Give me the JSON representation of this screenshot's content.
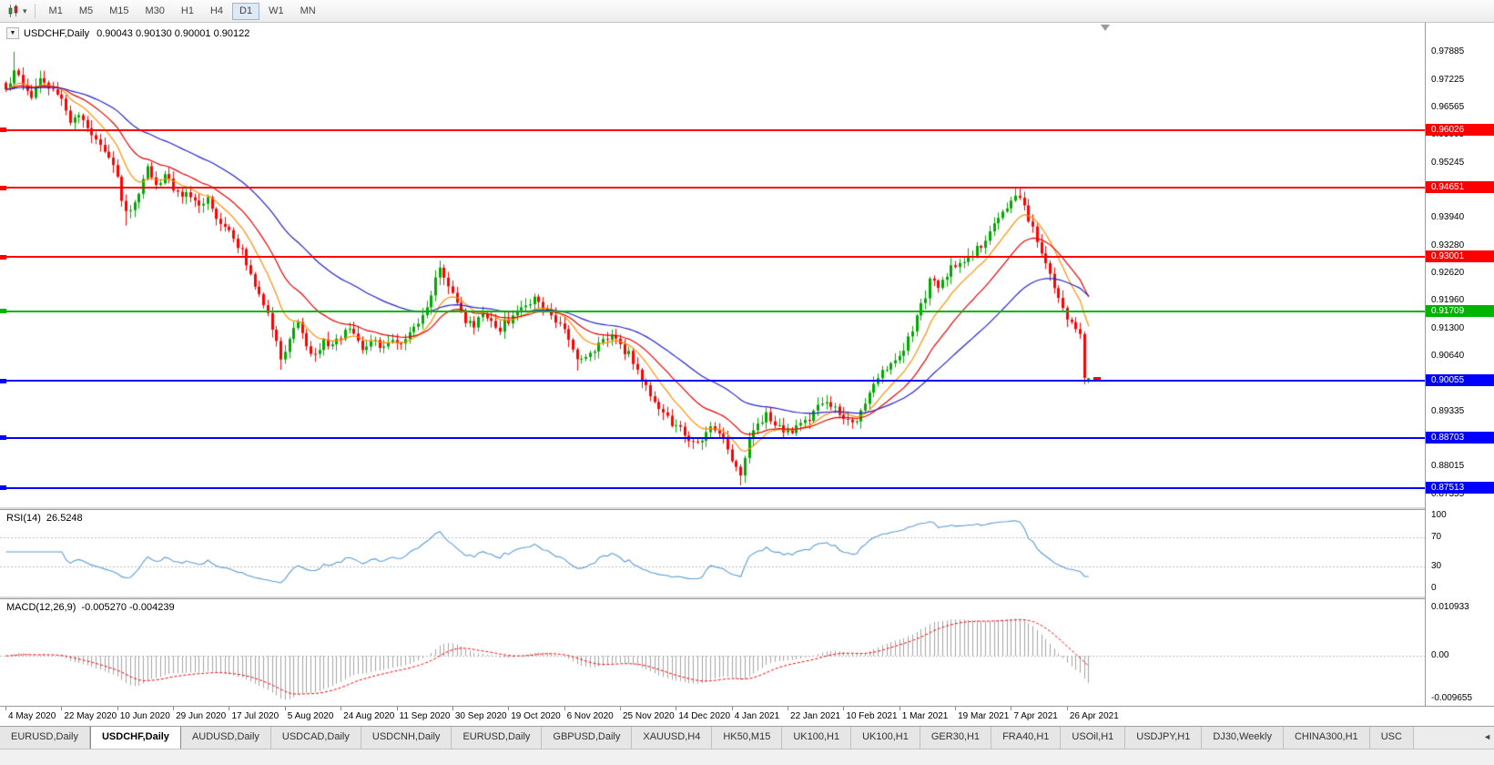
{
  "toolbar": {
    "timeframes": [
      "M1",
      "M5",
      "M15",
      "M30",
      "H1",
      "H4",
      "D1",
      "W1",
      "MN"
    ],
    "active_timeframe": "D1",
    "dropdown_caret": "▾"
  },
  "price_pane": {
    "collapse_arrow": "▼",
    "title": "USDCHF,Daily",
    "ohlc_text": "0.90043 0.90130 0.90001 0.90122"
  },
  "rsi_pane": {
    "label": "RSI(14)",
    "value": "26.5248"
  },
  "macd_pane": {
    "label": "MACD(12,26,9)",
    "values": "-0.005270 -0.004239"
  },
  "tab_bar": {
    "active_index": 1,
    "tabs": [
      "EURUSD,Daily",
      "USDCHF,Daily",
      "AUDUSD,Daily",
      "USDCAD,Daily",
      "USDCNH,Daily",
      "EURUSD,Daily",
      "GBPUSD,Daily",
      "XAUUSD,H4",
      "HK50,M15",
      "UK100,H1",
      "UK100,H1",
      "GER30,H1",
      "FRA40,H1",
      "USOil,H1",
      "USDJPY,H1",
      "DJ30,Weekly",
      "CHINA300,H1",
      "USC"
    ],
    "scroll_left_arrow": "◄"
  },
  "chart_data": {
    "type": "candlestick",
    "symbol": "USDCHF",
    "period": "Daily",
    "last_candle": {
      "o": 0.90043,
      "h": 0.9013,
      "l": 0.90001,
      "c": 0.90122
    },
    "ylim": [
      0.8707,
      0.9858
    ],
    "y_ticks": [
      0.97885,
      0.97225,
      0.96565,
      0.95905,
      0.95245,
      0.94585,
      0.9394,
      0.9328,
      0.9262,
      0.9196,
      0.913,
      0.9064,
      0.8998,
      0.89335,
      0.88675,
      0.88015,
      0.87355
    ],
    "x_ticks": [
      [
        0,
        "4 May 2020"
      ],
      [
        13,
        "22 May 2020"
      ],
      [
        26,
        "10 Jun 2020"
      ],
      [
        39,
        "29 Jun 2020"
      ],
      [
        52,
        "17 Jul 2020"
      ],
      [
        65,
        "5 Aug 2020"
      ],
      [
        78,
        "24 Aug 2020"
      ],
      [
        91,
        "11 Sep 2020"
      ],
      [
        104,
        "30 Sep 2020"
      ],
      [
        117,
        "19 Oct 2020"
      ],
      [
        130,
        "6 Nov 2020"
      ],
      [
        143,
        "25 Nov 2020"
      ],
      [
        156,
        "14 Dec 2020"
      ],
      [
        169,
        "4 Jan 2021"
      ],
      [
        182,
        "22 Jan 2021"
      ],
      [
        195,
        "10 Feb 2021"
      ],
      [
        208,
        "1 Mar 2021"
      ],
      [
        221,
        "19 Mar 2021"
      ],
      [
        234,
        "7 Apr 2021"
      ],
      [
        247,
        "26 Apr 2021"
      ]
    ],
    "hlines": [
      {
        "value": 0.96026,
        "label": "0.96026",
        "color": "#ff0000"
      },
      {
        "value": 0.94651,
        "label": "0.94651",
        "color": "#ff0000"
      },
      {
        "value": 0.93001,
        "label": "0.93001",
        "color": "#ff0000"
      },
      {
        "value": 0.91709,
        "label": "0.91709",
        "color": "#00b400"
      },
      {
        "value": 0.90055,
        "label": "0.90055",
        "color": "#0000ff"
      },
      {
        "value": 0.88703,
        "label": "0.88703",
        "color": "#0000ff"
      },
      {
        "value": 0.87513,
        "label": "0.87513",
        "color": "#0000ff"
      }
    ],
    "candle_count": 253,
    "price_keypoints": [
      [
        0,
        0.969
      ],
      [
        2,
        0.9745
      ],
      [
        4,
        0.971
      ],
      [
        6,
        0.9688
      ],
      [
        8,
        0.9716
      ],
      [
        10,
        0.9702
      ],
      [
        13,
        0.9668
      ],
      [
        15,
        0.9625
      ],
      [
        17,
        0.9642
      ],
      [
        19,
        0.96
      ],
      [
        21,
        0.9575
      ],
      [
        23,
        0.9548
      ],
      [
        25,
        0.9528
      ],
      [
        26,
        0.9495
      ],
      [
        27,
        0.944
      ],
      [
        28,
        0.9405
      ],
      [
        30,
        0.9435
      ],
      [
        33,
        0.9508
      ],
      [
        35,
        0.9478
      ],
      [
        37,
        0.9494
      ],
      [
        39,
        0.9468
      ],
      [
        41,
        0.944
      ],
      [
        43,
        0.9452
      ],
      [
        45,
        0.9415
      ],
      [
        47,
        0.9436
      ],
      [
        49,
        0.9396
      ],
      [
        51,
        0.9372
      ],
      [
        53,
        0.9348
      ],
      [
        55,
        0.9312
      ],
      [
        57,
        0.9252
      ],
      [
        59,
        0.9222
      ],
      [
        61,
        0.9162
      ],
      [
        63,
        0.9096
      ],
      [
        64,
        0.9058
      ],
      [
        66,
        0.9108
      ],
      [
        68,
        0.9136
      ],
      [
        70,
        0.9092
      ],
      [
        72,
        0.9068
      ],
      [
        74,
        0.9104
      ],
      [
        76,
        0.9086
      ],
      [
        78,
        0.911
      ],
      [
        80,
        0.9134
      ],
      [
        82,
        0.9092
      ],
      [
        84,
        0.908
      ],
      [
        86,
        0.9102
      ],
      [
        88,
        0.9086
      ],
      [
        90,
        0.91
      ],
      [
        92,
        0.9086
      ],
      [
        94,
        0.9112
      ],
      [
        96,
        0.9142
      ],
      [
        98,
        0.9186
      ],
      [
        100,
        0.9242
      ],
      [
        101,
        0.9276
      ],
      [
        103,
        0.924
      ],
      [
        105,
        0.9196
      ],
      [
        107,
        0.9148
      ],
      [
        109,
        0.9136
      ],
      [
        111,
        0.916
      ],
      [
        113,
        0.9146
      ],
      [
        115,
        0.9132
      ],
      [
        117,
        0.9152
      ],
      [
        119,
        0.9164
      ],
      [
        121,
        0.9188
      ],
      [
        123,
        0.9204
      ],
      [
        125,
        0.9188
      ],
      [
        127,
        0.916
      ],
      [
        129,
        0.9146
      ],
      [
        131,
        0.9108
      ],
      [
        133,
        0.9048
      ],
      [
        135,
        0.9056
      ],
      [
        137,
        0.9078
      ],
      [
        139,
        0.9098
      ],
      [
        141,
        0.9112
      ],
      [
        143,
        0.9086
      ],
      [
        145,
        0.9068
      ],
      [
        147,
        0.9026
      ],
      [
        149,
        0.8996
      ],
      [
        151,
        0.8962
      ],
      [
        153,
        0.893
      ],
      [
        155,
        0.8908
      ],
      [
        157,
        0.8888
      ],
      [
        159,
        0.8862
      ],
      [
        161,
        0.8856
      ],
      [
        163,
        0.8882
      ],
      [
        165,
        0.8894
      ],
      [
        167,
        0.8868
      ],
      [
        169,
        0.8822
      ],
      [
        171,
        0.8772
      ],
      [
        173,
        0.8862
      ],
      [
        175,
        0.8902
      ],
      [
        177,
        0.8926
      ],
      [
        179,
        0.8906
      ],
      [
        181,
        0.8892
      ],
      [
        183,
        0.8886
      ],
      [
        185,
        0.8896
      ],
      [
        187,
        0.8912
      ],
      [
        189,
        0.8946
      ],
      [
        191,
        0.8962
      ],
      [
        193,
        0.894
      ],
      [
        195,
        0.8924
      ],
      [
        197,
        0.8906
      ],
      [
        199,
        0.8932
      ],
      [
        201,
        0.8976
      ],
      [
        203,
        0.9012
      ],
      [
        205,
        0.9042
      ],
      [
        207,
        0.9062
      ],
      [
        209,
        0.9086
      ],
      [
        211,
        0.9132
      ],
      [
        213,
        0.9182
      ],
      [
        215,
        0.9242
      ],
      [
        217,
        0.9228
      ],
      [
        219,
        0.9262
      ],
      [
        221,
        0.9282
      ],
      [
        223,
        0.9296
      ],
      [
        225,
        0.9312
      ],
      [
        227,
        0.9332
      ],
      [
        229,
        0.9362
      ],
      [
        231,
        0.9388
      ],
      [
        233,
        0.9422
      ],
      [
        235,
        0.9452
      ],
      [
        237,
        0.942
      ],
      [
        239,
        0.9366
      ],
      [
        241,
        0.9308
      ],
      [
        243,
        0.9258
      ],
      [
        245,
        0.9196
      ],
      [
        247,
        0.9148
      ],
      [
        249,
        0.9132
      ],
      [
        250,
        0.9122
      ],
      [
        251,
        0.9018
      ],
      [
        252,
        0.90122
      ]
    ],
    "spikes": [
      {
        "i": 2,
        "high": 0.9789
      },
      {
        "i": 28,
        "low": 0.9375
      },
      {
        "i": 64,
        "low": 0.9032
      },
      {
        "i": 101,
        "high": 0.9292
      },
      {
        "i": 133,
        "low": 0.903
      },
      {
        "i": 171,
        "low": 0.8757
      },
      {
        "i": 235,
        "high": 0.9466
      },
      {
        "i": 251,
        "low": 0.9002
      }
    ],
    "moving_averages": [
      {
        "period": 10,
        "color": "#ff8c00"
      },
      {
        "period": 21,
        "color": "#e60000"
      },
      {
        "period": 45,
        "color": "#2222cc"
      }
    ],
    "indicators": {
      "rsi": {
        "label": "RSI(14)",
        "period": 14,
        "current": 26.5248,
        "levels": [
          70,
          30
        ],
        "axis_labels": [
          "100",
          "70",
          "30",
          "0"
        ],
        "color": "#5b9bd5"
      },
      "macd": {
        "label": "MACD(12,26,9)",
        "current_main": -0.00527,
        "current_signal": -0.004239,
        "axis_labels": [
          "0.010933",
          "0.00",
          "-0.009655"
        ],
        "hist_color": "#a3a3a3",
        "signal_color": "#ff0000"
      }
    },
    "colors": {
      "up": "#00a800",
      "down": "#ff0000",
      "background": "#ffffff",
      "axis_text": "#000000"
    }
  }
}
